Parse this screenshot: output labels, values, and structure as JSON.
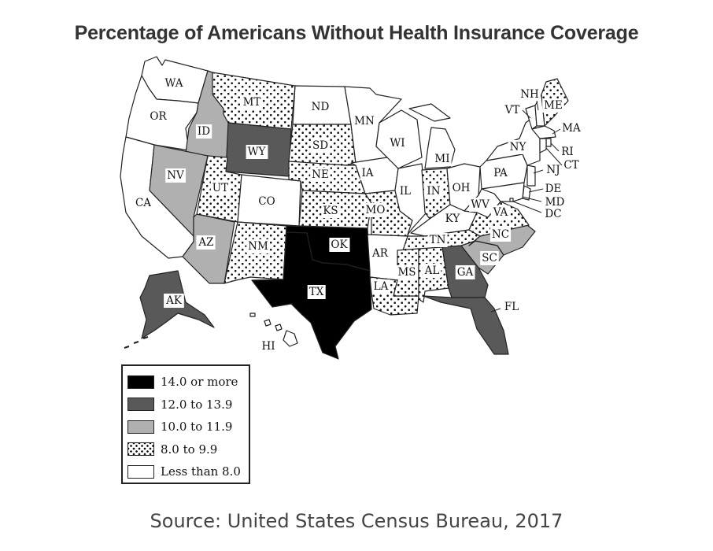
{
  "title": "Percentage of Americans Without Health Insurance Coverage",
  "source": "Source: United States Census Bureau, 2017",
  "legend": [
    {
      "label": "14.0 or more",
      "class": "c5"
    },
    {
      "label": "12.0 to 13.9",
      "class": "c4"
    },
    {
      "label": "10.0 to 11.9",
      "class": "c3"
    },
    {
      "label": "8.0 to 9.9",
      "class": "c2"
    },
    {
      "label": "Less than 8.0",
      "class": "c1"
    }
  ],
  "classes": {
    "c5": {
      "fill": "#000000"
    },
    "c4": {
      "fill": "#595959"
    },
    "c3": {
      "fill": "#b0b0b0"
    },
    "c2": {
      "pattern": "dots"
    },
    "c1": {
      "fill": "#ffffff"
    }
  },
  "states": [
    {
      "abbr": "WA",
      "class": "c1"
    },
    {
      "abbr": "OR",
      "class": "c1"
    },
    {
      "abbr": "CA",
      "class": "c1"
    },
    {
      "abbr": "ID",
      "class": "c3"
    },
    {
      "abbr": "NV",
      "class": "c3"
    },
    {
      "abbr": "AZ",
      "class": "c3"
    },
    {
      "abbr": "MT",
      "class": "c2"
    },
    {
      "abbr": "WY",
      "class": "c4"
    },
    {
      "abbr": "UT",
      "class": "c2"
    },
    {
      "abbr": "CO",
      "class": "c1"
    },
    {
      "abbr": "NM",
      "class": "c2"
    },
    {
      "abbr": "ND",
      "class": "c1"
    },
    {
      "abbr": "SD",
      "class": "c2"
    },
    {
      "abbr": "NE",
      "class": "c2"
    },
    {
      "abbr": "KS",
      "class": "c2"
    },
    {
      "abbr": "OK",
      "class": "c5"
    },
    {
      "abbr": "TX",
      "class": "c5"
    },
    {
      "abbr": "MN",
      "class": "c1"
    },
    {
      "abbr": "IA",
      "class": "c1"
    },
    {
      "abbr": "MO",
      "class": "c2"
    },
    {
      "abbr": "AR",
      "class": "c1"
    },
    {
      "abbr": "LA",
      "class": "c2"
    },
    {
      "abbr": "WI",
      "class": "c1"
    },
    {
      "abbr": "IL",
      "class": "c1"
    },
    {
      "abbr": "MI",
      "class": "c1"
    },
    {
      "abbr": "IN",
      "class": "c2"
    },
    {
      "abbr": "OH",
      "class": "c1"
    },
    {
      "abbr": "KY",
      "class": "c1"
    },
    {
      "abbr": "TN",
      "class": "c2"
    },
    {
      "abbr": "MS",
      "class": "c2"
    },
    {
      "abbr": "AL",
      "class": "c2"
    },
    {
      "abbr": "GA",
      "class": "c4"
    },
    {
      "abbr": "FL",
      "class": "c4"
    },
    {
      "abbr": "SC",
      "class": "c3"
    },
    {
      "abbr": "NC",
      "class": "c3"
    },
    {
      "abbr": "VA",
      "class": "c2"
    },
    {
      "abbr": "WV",
      "class": "c1"
    },
    {
      "abbr": "PA",
      "class": "c1"
    },
    {
      "abbr": "NY",
      "class": "c1"
    },
    {
      "abbr": "VT",
      "class": "c1"
    },
    {
      "abbr": "NH",
      "class": "c1"
    },
    {
      "abbr": "ME",
      "class": "c2"
    },
    {
      "abbr": "MA",
      "class": "c1"
    },
    {
      "abbr": "RI",
      "class": "c1"
    },
    {
      "abbr": "CT",
      "class": "c1"
    },
    {
      "abbr": "NJ",
      "class": "c1"
    },
    {
      "abbr": "DE",
      "class": "c1"
    },
    {
      "abbr": "MD",
      "class": "c1"
    },
    {
      "abbr": "DC",
      "class": "c1"
    },
    {
      "abbr": "AK",
      "class": "c4"
    },
    {
      "abbr": "HI",
      "class": "c1"
    }
  ]
}
